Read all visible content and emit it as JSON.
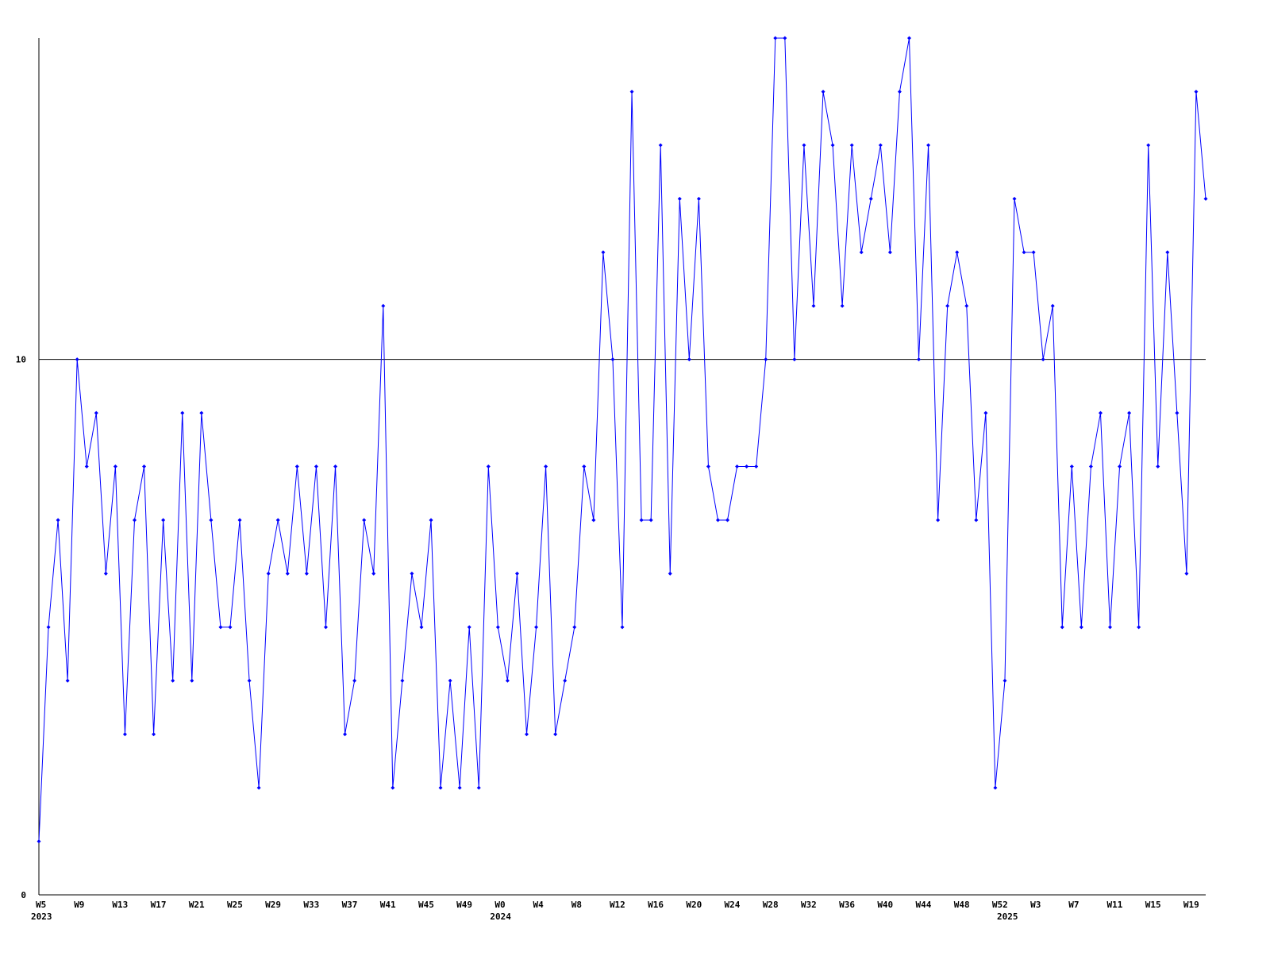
{
  "chart_data": {
    "type": "line",
    "categories": [
      "W5",
      null,
      null,
      null,
      "W9",
      null,
      null,
      null,
      "W13",
      null,
      null,
      null,
      "W17",
      null,
      null,
      null,
      "W21",
      null,
      null,
      null,
      "W25",
      null,
      null,
      null,
      "W29",
      null,
      null,
      null,
      "W33",
      null,
      null,
      null,
      "W37",
      null,
      null,
      null,
      "W41",
      null,
      null,
      null,
      "W45",
      null,
      null,
      null,
      "W49",
      null,
      null,
      null,
      "W0",
      null,
      null,
      null,
      "W4",
      null,
      null,
      null,
      "W8",
      null,
      null,
      null,
      "W12",
      null,
      null,
      null,
      "W16",
      null,
      null,
      null,
      "W20",
      null,
      null,
      null,
      "W24",
      null,
      null,
      null,
      "W28",
      null,
      null,
      null,
      "W32",
      null,
      null,
      null,
      "W36",
      null,
      null,
      null,
      "W40",
      null,
      null,
      null,
      "W44",
      null,
      null,
      null,
      "W48",
      null,
      null,
      null,
      "W52",
      null,
      null,
      null,
      "W3",
      null,
      null,
      null,
      "W7",
      null,
      null,
      null,
      "W11",
      null,
      null,
      null,
      "W15",
      null,
      null,
      null,
      "W19",
      null,
      null
    ],
    "category_years": [
      "2023",
      null,
      null,
      null,
      null,
      null,
      null,
      null,
      null,
      null,
      null,
      null,
      null,
      null,
      null,
      null,
      null,
      null,
      null,
      null,
      null,
      null,
      null,
      null,
      null,
      null,
      null,
      null,
      null,
      null,
      null,
      null,
      null,
      null,
      null,
      null,
      null,
      null,
      null,
      null,
      null,
      null,
      null,
      null,
      null,
      null,
      null,
      null,
      "2024",
      null,
      null,
      null,
      null,
      null,
      null,
      null,
      null,
      null,
      null,
      null,
      null,
      null,
      null,
      null,
      null,
      null,
      null,
      null,
      null,
      null,
      null,
      null,
      null,
      null,
      null,
      null,
      null,
      null,
      null,
      null,
      null,
      null,
      null,
      null,
      null,
      null,
      null,
      null,
      null,
      null,
      null,
      null,
      null,
      null,
      null,
      null,
      null,
      null,
      null,
      null,
      null,
      "2025",
      null,
      null,
      null,
      null,
      null,
      null,
      null,
      null,
      null,
      null,
      null,
      null,
      null,
      null,
      null,
      null,
      null,
      null,
      null,
      null,
      null
    ],
    "series": [
      {
        "color": "#0000ff",
        "values": [
          1,
          5,
          7,
          4,
          10,
          8,
          9,
          6,
          8,
          3,
          7,
          8,
          3,
          7,
          4,
          9,
          4,
          9,
          7,
          5,
          5,
          7,
          4,
          2,
          6,
          7,
          6,
          8,
          6,
          8,
          5,
          8,
          3,
          4,
          7,
          6,
          11,
          2,
          4,
          6,
          5,
          7,
          2,
          4,
          2,
          5,
          2,
          8,
          5,
          4,
          6,
          3,
          5,
          8,
          3,
          4,
          5,
          8,
          7,
          12,
          10,
          5,
          15,
          7,
          7,
          14,
          6,
          13,
          10,
          13,
          8,
          7,
          7,
          8,
          8,
          8,
          10,
          16,
          16,
          10,
          14,
          11,
          15,
          14,
          11,
          14,
          12,
          13,
          14,
          12,
          15,
          16,
          10,
          14,
          7,
          11,
          12,
          11,
          7,
          9,
          2,
          4,
          13,
          12,
          12,
          10,
          11,
          5,
          8,
          5,
          8,
          9,
          5,
          8,
          9,
          5,
          14,
          8,
          12,
          9,
          6,
          15,
          13
        ]
      }
    ],
    "ylim": [
      0,
      16
    ],
    "yticks": [
      0,
      10
    ],
    "grid": true
  }
}
